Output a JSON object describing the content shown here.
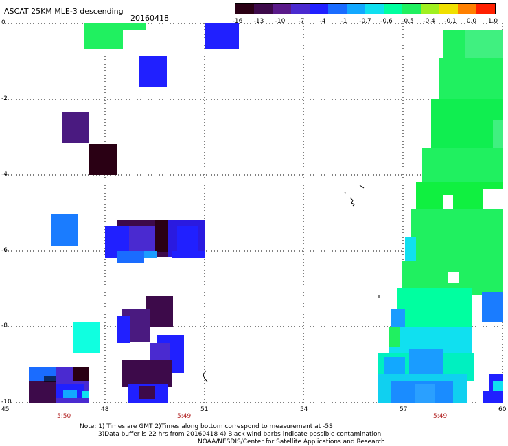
{
  "header": {
    "title": "ASCAT 25KM MLE-3 descending",
    "date": "20160418"
  },
  "colorbar": {
    "labels": [
      "-16",
      "-13",
      "-10",
      "-7",
      "-4",
      "-1",
      "-0.7",
      "-0.6",
      "-0.5",
      "-0.4",
      "-0.1",
      "0.0",
      "1.0"
    ],
    "colors": [
      "#2a0014",
      "#3d0a4a",
      "#5a1a8a",
      "#4a2ad0",
      "#2020ff",
      "#1a6cff",
      "#12a8ff",
      "#10e0f0",
      "#00ffa0",
      "#20f060",
      "#a0f020",
      "#f0e000",
      "#ff8000",
      "#ff2000"
    ]
  },
  "axes": {
    "y_ticks": [
      "0",
      "-2",
      "-4",
      "-6",
      "-8",
      "-10"
    ],
    "x_ticks": [
      "45",
      "48",
      "51",
      "54",
      "57",
      "60"
    ],
    "time_labels": [
      "5:50",
      "5:49",
      "5:49"
    ]
  },
  "footer": {
    "line1": "Note: 1) Times are GMT 2)Times along bottom correspond to measurement at -5S",
    "line2": "3)Data buffer is 22 hrs from 20160418 4) Black wind barbs indicate possible contamination",
    "line3": "NOAA/NESDIS/Center for Satellite Applications and Research"
  }
}
